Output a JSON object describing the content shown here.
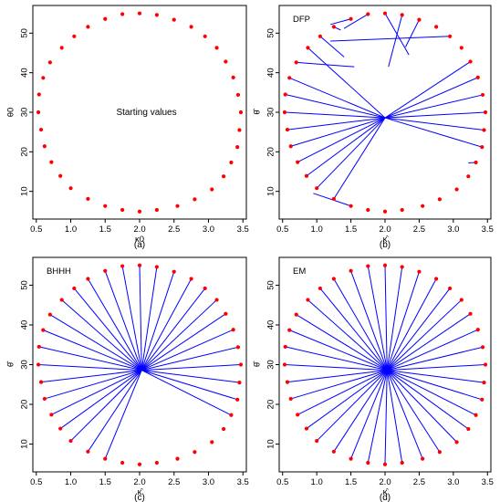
{
  "colors": {
    "point": "#ff0000",
    "line": "#0000ff",
    "frame": "#000000"
  },
  "chart_data": [
    {
      "type": "scatter",
      "panel_title": "",
      "caption": "(a)",
      "xlabel": "κ0",
      "ylabel": "θ0",
      "annotation": "Starting values",
      "xticks": [
        "0.5",
        "1.0",
        "1.5",
        "2.0",
        "2.5",
        "3.0",
        "3.5"
      ],
      "yticks": [
        "10",
        "20",
        "30",
        "40",
        "50"
      ],
      "xlim": [
        0.45,
        3.55
      ],
      "ylim": [
        3,
        57
      ],
      "grid": false,
      "start_points": [
        [
          2.0,
          55.0
        ],
        [
          2.25,
          54.6
        ],
        [
          2.5,
          53.4
        ],
        [
          2.75,
          51.6
        ],
        [
          2.95,
          49.2
        ],
        [
          3.12,
          46.3
        ],
        [
          3.25,
          42.8
        ],
        [
          3.36,
          38.8
        ],
        [
          3.43,
          34.4
        ],
        [
          3.47,
          30.0
        ],
        [
          3.45,
          25.5
        ],
        [
          3.42,
          21.2
        ],
        [
          3.33,
          17.3
        ],
        [
          3.22,
          13.8
        ],
        [
          3.05,
          10.5
        ],
        [
          2.8,
          8.0
        ],
        [
          2.55,
          6.3
        ],
        [
          2.25,
          5.3
        ],
        [
          2.0,
          4.9
        ],
        [
          1.75,
          5.3
        ],
        [
          1.5,
          6.3
        ],
        [
          1.25,
          8.1
        ],
        [
          1.0,
          10.8
        ],
        [
          0.85,
          13.9
        ],
        [
          0.72,
          17.4
        ],
        [
          0.62,
          21.4
        ],
        [
          0.57,
          25.6
        ],
        [
          0.53,
          30.0
        ],
        [
          0.54,
          34.5
        ],
        [
          0.6,
          38.7
        ],
        [
          0.7,
          42.6
        ],
        [
          0.87,
          46.3
        ],
        [
          1.05,
          49.2
        ],
        [
          1.25,
          51.6
        ],
        [
          1.5,
          53.6
        ],
        [
          1.75,
          54.8
        ]
      ],
      "end_points": []
    },
    {
      "type": "scatter",
      "panel_title": "DFP",
      "caption": "(b)",
      "xlabel": "κ̂",
      "ylabel": "θ̂",
      "annotation": "",
      "xticks": [
        "0.5",
        "1.0",
        "1.5",
        "2.0",
        "2.5",
        "3.0",
        "3.5"
      ],
      "yticks": [
        "10",
        "20",
        "30",
        "40",
        "50"
      ],
      "xlim": [
        0.45,
        3.55
      ],
      "ylim": [
        3,
        57
      ],
      "grid": false,
      "start_points": [
        [
          2.0,
          55.0
        ],
        [
          2.25,
          54.6
        ],
        [
          2.5,
          53.4
        ],
        [
          2.75,
          51.6
        ],
        [
          2.95,
          49.2
        ],
        [
          3.12,
          46.3
        ],
        [
          3.25,
          42.8
        ],
        [
          3.36,
          38.8
        ],
        [
          3.43,
          34.4
        ],
        [
          3.47,
          30.0
        ],
        [
          3.45,
          25.5
        ],
        [
          3.42,
          21.2
        ],
        [
          3.33,
          17.3
        ],
        [
          3.22,
          13.8
        ],
        [
          3.05,
          10.5
        ],
        [
          2.8,
          8.0
        ],
        [
          2.55,
          6.3
        ],
        [
          2.25,
          5.3
        ],
        [
          2.0,
          4.9
        ],
        [
          1.75,
          5.3
        ],
        [
          1.5,
          6.3
        ],
        [
          1.25,
          8.1
        ],
        [
          1.0,
          10.8
        ],
        [
          0.85,
          13.9
        ],
        [
          0.72,
          17.4
        ],
        [
          0.62,
          21.4
        ],
        [
          0.57,
          25.6
        ],
        [
          0.53,
          30.0
        ],
        [
          0.54,
          34.5
        ],
        [
          0.6,
          38.7
        ],
        [
          0.7,
          42.6
        ],
        [
          0.87,
          46.3
        ],
        [
          1.05,
          49.2
        ],
        [
          1.25,
          51.6
        ],
        [
          1.5,
          53.6
        ],
        [
          1.75,
          54.8
        ]
      ],
      "end_points": [
        [
          2.35,
          44.5
        ],
        [
          2.05,
          41.5
        ],
        [
          2.3,
          46.5
        ],
        [
          2.75,
          51.6
        ],
        [
          1.2,
          48.0
        ],
        [
          3.12,
          46.3
        ],
        [
          2.0,
          28.6
        ],
        [
          2.0,
          28.6
        ],
        [
          2.0,
          28.6
        ],
        [
          2.0,
          28.6
        ],
        [
          2.0,
          28.6
        ],
        [
          2.0,
          28.6
        ],
        [
          3.22,
          17.2
        ],
        [
          3.22,
          13.8
        ],
        [
          3.05,
          10.5
        ],
        [
          2.8,
          8.0
        ],
        [
          2.55,
          6.3
        ],
        [
          2.25,
          5.3
        ],
        [
          2.0,
          4.9
        ],
        [
          1.75,
          5.3
        ],
        [
          0.95,
          9.5
        ],
        [
          2.0,
          28.6
        ],
        [
          2.0,
          28.6
        ],
        [
          2.0,
          28.6
        ],
        [
          2.0,
          28.6
        ],
        [
          2.0,
          28.6
        ],
        [
          2.0,
          28.6
        ],
        [
          2.0,
          28.6
        ],
        [
          2.0,
          28.6
        ],
        [
          2.0,
          28.6
        ],
        [
          1.55,
          41.5
        ],
        [
          2.0,
          28.6
        ],
        [
          1.4,
          44.0
        ],
        [
          1.35,
          50.8
        ],
        [
          1.2,
          52.2
        ],
        [
          1.4,
          51.2
        ]
      ]
    },
    {
      "type": "scatter",
      "panel_title": "BHHH",
      "caption": "(c)",
      "xlabel": "κ̂",
      "ylabel": "θ̂",
      "annotation": "",
      "xticks": [
        "0.5",
        "1.0",
        "1.5",
        "2.0",
        "2.5",
        "3.0",
        "3.5"
      ],
      "yticks": [
        "10",
        "20",
        "30",
        "40",
        "50"
      ],
      "xlim": [
        0.45,
        3.55
      ],
      "ylim": [
        3,
        57
      ],
      "grid": false,
      "start_points": [
        [
          2.0,
          55.0
        ],
        [
          2.25,
          54.6
        ],
        [
          2.5,
          53.4
        ],
        [
          2.75,
          51.6
        ],
        [
          2.95,
          49.2
        ],
        [
          3.12,
          46.3
        ],
        [
          3.25,
          42.8
        ],
        [
          3.36,
          38.8
        ],
        [
          3.43,
          34.4
        ],
        [
          3.47,
          30.0
        ],
        [
          3.45,
          25.5
        ],
        [
          3.42,
          21.2
        ],
        [
          3.33,
          17.3
        ],
        [
          3.22,
          13.8
        ],
        [
          3.05,
          10.5
        ],
        [
          2.8,
          8.0
        ],
        [
          2.55,
          6.3
        ],
        [
          2.25,
          5.3
        ],
        [
          2.0,
          4.9
        ],
        [
          1.75,
          5.3
        ],
        [
          1.5,
          6.3
        ],
        [
          1.25,
          8.1
        ],
        [
          1.0,
          10.8
        ],
        [
          0.85,
          13.9
        ],
        [
          0.72,
          17.4
        ],
        [
          0.62,
          21.4
        ],
        [
          0.57,
          25.6
        ],
        [
          0.53,
          30.0
        ],
        [
          0.54,
          34.5
        ],
        [
          0.6,
          38.7
        ],
        [
          0.7,
          42.6
        ],
        [
          0.87,
          46.3
        ],
        [
          1.05,
          49.2
        ],
        [
          1.25,
          51.6
        ],
        [
          1.5,
          53.6
        ],
        [
          1.75,
          54.8
        ]
      ],
      "end_points": [
        [
          2.03,
          28.6
        ],
        [
          2.03,
          28.6
        ],
        [
          2.03,
          28.6
        ],
        [
          2.03,
          28.6
        ],
        [
          2.03,
          28.6
        ],
        [
          2.03,
          28.6
        ],
        [
          2.03,
          28.6
        ],
        [
          2.03,
          28.6
        ],
        [
          2.03,
          28.6
        ],
        [
          2.03,
          28.6
        ],
        [
          2.03,
          28.6
        ],
        [
          2.03,
          28.6
        ],
        [
          2.03,
          28.6
        ],
        [
          3.22,
          13.8
        ],
        [
          3.05,
          10.5
        ],
        [
          2.8,
          8.0
        ],
        [
          2.55,
          6.3
        ],
        [
          2.25,
          5.3
        ],
        [
          2.0,
          4.9
        ],
        [
          1.75,
          5.3
        ],
        [
          2.03,
          28.6
        ],
        [
          2.03,
          28.6
        ],
        [
          2.03,
          28.6
        ],
        [
          2.03,
          28.6
        ],
        [
          2.03,
          28.6
        ],
        [
          2.03,
          28.6
        ],
        [
          2.03,
          28.6
        ],
        [
          2.03,
          28.6
        ],
        [
          2.03,
          28.6
        ],
        [
          2.03,
          28.6
        ],
        [
          2.03,
          28.6
        ],
        [
          2.03,
          28.6
        ],
        [
          2.03,
          28.6
        ],
        [
          2.03,
          28.6
        ],
        [
          2.03,
          28.6
        ],
        [
          2.03,
          28.6
        ]
      ]
    },
    {
      "type": "scatter",
      "panel_title": "EM",
      "caption": "(d)",
      "xlabel": "κ̂",
      "ylabel": "θ̂",
      "annotation": "",
      "xticks": [
        "0.5",
        "1.0",
        "1.5",
        "2.0",
        "2.5",
        "3.0",
        "3.5"
      ],
      "yticks": [
        "10",
        "20",
        "30",
        "40",
        "50"
      ],
      "xlim": [
        0.45,
        3.55
      ],
      "ylim": [
        3,
        57
      ],
      "grid": false,
      "start_points": [
        [
          2.0,
          55.0
        ],
        [
          2.25,
          54.6
        ],
        [
          2.5,
          53.4
        ],
        [
          2.75,
          51.6
        ],
        [
          2.95,
          49.2
        ],
        [
          3.12,
          46.3
        ],
        [
          3.25,
          42.8
        ],
        [
          3.36,
          38.8
        ],
        [
          3.43,
          34.4
        ],
        [
          3.47,
          30.0
        ],
        [
          3.45,
          25.5
        ],
        [
          3.42,
          21.2
        ],
        [
          3.33,
          17.3
        ],
        [
          3.22,
          13.8
        ],
        [
          3.05,
          10.5
        ],
        [
          2.8,
          8.0
        ],
        [
          2.55,
          6.3
        ],
        [
          2.25,
          5.3
        ],
        [
          2.0,
          4.9
        ],
        [
          1.75,
          5.3
        ],
        [
          1.5,
          6.3
        ],
        [
          1.25,
          8.1
        ],
        [
          1.0,
          10.8
        ],
        [
          0.85,
          13.9
        ],
        [
          0.72,
          17.4
        ],
        [
          0.62,
          21.4
        ],
        [
          0.57,
          25.6
        ],
        [
          0.53,
          30.0
        ],
        [
          0.54,
          34.5
        ],
        [
          0.6,
          38.7
        ],
        [
          0.7,
          42.6
        ],
        [
          0.87,
          46.3
        ],
        [
          1.05,
          49.2
        ],
        [
          1.25,
          51.6
        ],
        [
          1.5,
          53.6
        ],
        [
          1.75,
          54.8
        ]
      ],
      "end_points": [
        [
          2.03,
          28.6
        ],
        [
          2.03,
          28.6
        ],
        [
          2.03,
          28.6
        ],
        [
          2.03,
          28.6
        ],
        [
          2.03,
          28.6
        ],
        [
          2.03,
          28.6
        ],
        [
          2.03,
          28.6
        ],
        [
          2.03,
          28.6
        ],
        [
          2.03,
          28.6
        ],
        [
          2.03,
          28.6
        ],
        [
          2.03,
          28.6
        ],
        [
          2.03,
          28.6
        ],
        [
          2.03,
          28.6
        ],
        [
          2.03,
          28.6
        ],
        [
          2.03,
          28.6
        ],
        [
          2.03,
          28.6
        ],
        [
          2.03,
          28.6
        ],
        [
          2.03,
          28.6
        ],
        [
          2.03,
          28.6
        ],
        [
          2.03,
          28.6
        ],
        [
          2.03,
          28.6
        ],
        [
          2.03,
          28.6
        ],
        [
          2.03,
          28.6
        ],
        [
          2.03,
          28.6
        ],
        [
          2.03,
          28.6
        ],
        [
          2.03,
          28.6
        ],
        [
          2.03,
          28.6
        ],
        [
          2.03,
          28.6
        ],
        [
          2.03,
          28.6
        ],
        [
          2.03,
          28.6
        ],
        [
          2.03,
          28.6
        ],
        [
          2.03,
          28.6
        ],
        [
          2.03,
          28.6
        ],
        [
          2.03,
          28.6
        ],
        [
          2.03,
          28.6
        ],
        [
          2.03,
          28.6
        ]
      ]
    }
  ]
}
